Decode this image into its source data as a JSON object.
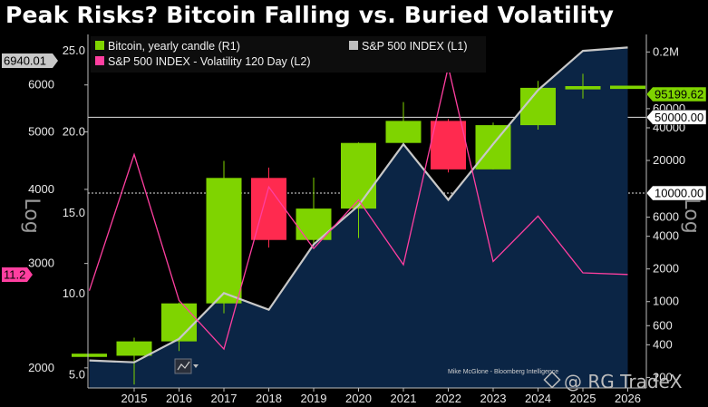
{
  "title": "Peak Risks? Bitcoin Falling vs. Buried Volatility",
  "chart_data": {
    "type": "candlestick+line",
    "title": "Peak Risks? Bitcoin Falling vs. Buried Volatility",
    "x_labels": [
      "2015",
      "2016",
      "2017",
      "2018",
      "2019",
      "2020",
      "2021",
      "2022",
      "2023",
      "2024",
      "2025",
      "2026"
    ],
    "legend": [
      {
        "label": "Bitcoin, yearly candle (R1)",
        "color": "#7fd400"
      },
      {
        "label": "S&P 500 INDEX  (L1)",
        "color": "#bdbdbd"
      },
      {
        "label": "S&P 500 INDEX - Volatility 120 Day (L2)",
        "color": "#ff3fa0"
      }
    ],
    "left_axis_L1": {
      "label": "Log",
      "ticks": [
        "6000",
        "5000",
        "4000",
        "3000",
        "2000"
      ],
      "range": [
        1850,
        7300
      ]
    },
    "left_axis_L2": {
      "ticks": [
        "25.0",
        "20.0",
        "15.0",
        "10.0",
        "5.0"
      ],
      "range": [
        4.2,
        26.0
      ]
    },
    "right_axis_R1": {
      "label": "Log",
      "ticks": [
        "0.2M",
        "60000",
        "40000",
        "20000",
        "6000",
        "4000",
        "2000",
        "1000",
        "600",
        "400",
        "200"
      ],
      "range": [
        160,
        290000
      ]
    },
    "markers": {
      "sp500_last": "6940.01",
      "vol_last": "11.2",
      "btc_last": "95199.62",
      "level_50k": "50000.00",
      "level_10k": "10000.00"
    },
    "bitcoin_candles": [
      {
        "year": "2014",
        "open": 320,
        "high": 320,
        "low": 310,
        "close": 320
      },
      {
        "year": "2015",
        "open": 317,
        "high": 465,
        "low": 172,
        "close": 430
      },
      {
        "year": "2016",
        "open": 430,
        "high": 980,
        "low": 350,
        "close": 963
      },
      {
        "year": "2017",
        "open": 963,
        "high": 19800,
        "low": 780,
        "close": 13800
      },
      {
        "year": "2018",
        "open": 13800,
        "high": 17200,
        "low": 3150,
        "close": 3700
      },
      {
        "year": "2019",
        "open": 3700,
        "high": 13900,
        "low": 3400,
        "close": 7200
      },
      {
        "year": "2020",
        "open": 7200,
        "high": 29300,
        "low": 3850,
        "close": 29000
      },
      {
        "year": "2021",
        "open": 29000,
        "high": 69000,
        "low": 28800,
        "close": 46300
      },
      {
        "year": "2022",
        "open": 46300,
        "high": 48200,
        "low": 15500,
        "close": 16550
      },
      {
        "year": "2023",
        "open": 16550,
        "high": 44700,
        "low": 16500,
        "close": 42300
      },
      {
        "year": "2024",
        "open": 42300,
        "high": 108300,
        "low": 38500,
        "close": 93400
      },
      {
        "year": "2025",
        "open": 93400,
        "high": 126000,
        "low": 74400,
        "close": 93700
      },
      {
        "year": "2026",
        "open": 93700,
        "high": 97000,
        "low": 92000,
        "close": 95199.62
      }
    ],
    "sp500_series": [
      {
        "x": "2014",
        "y": 2059
      },
      {
        "x": "2015",
        "y": 2044
      },
      {
        "x": "2016",
        "y": 2239
      },
      {
        "x": "2017",
        "y": 2674
      },
      {
        "x": "2018",
        "y": 2507
      },
      {
        "x": "2019",
        "y": 3231
      },
      {
        "x": "2020",
        "y": 3756
      },
      {
        "x": "2021",
        "y": 4766
      },
      {
        "x": "2022",
        "y": 3840
      },
      {
        "x": "2023",
        "y": 4770
      },
      {
        "x": "2024",
        "y": 5882
      },
      {
        "x": "2025",
        "y": 6850
      },
      {
        "x": "2026",
        "y": 6940.01
      }
    ],
    "volatility_series": [
      {
        "x": "2014",
        "y": 10.2
      },
      {
        "x": "2015",
        "y": 18.6
      },
      {
        "x": "2016",
        "y": 9.6
      },
      {
        "x": "2017",
        "y": 6.6
      },
      {
        "x": "2018",
        "y": 16.6
      },
      {
        "x": "2019",
        "y": 12.8
      },
      {
        "x": "2020",
        "y": 15.8
      },
      {
        "x": "2021",
        "y": 11.8
      },
      {
        "x": "2022",
        "y": 24.0
      },
      {
        "x": "2023",
        "y": 12.0
      },
      {
        "x": "2024",
        "y": 14.8
      },
      {
        "x": "2025",
        "y": 11.3
      },
      {
        "x": "2026",
        "y": 11.2
      }
    ]
  },
  "credit": "Mike McGlone - Bloomberg Intelligence",
  "watermark": "@ RG TradeX"
}
